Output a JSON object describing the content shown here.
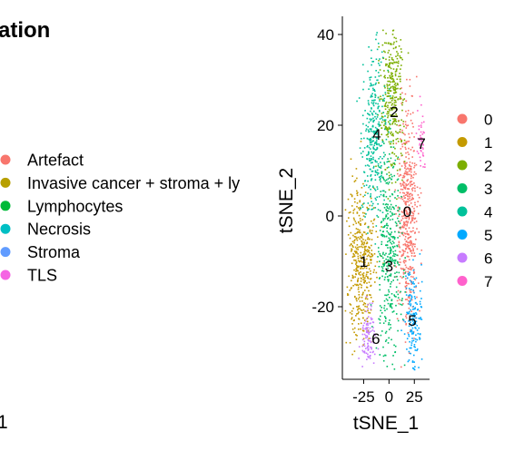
{
  "left_panel": {
    "title_fragment": "ation",
    "axis_fragment": "1",
    "legend_items": [
      {
        "label": "Artefact",
        "color": "#F8766D"
      },
      {
        "label": "Invasive cancer + stroma + ly",
        "color": "#B79F00"
      },
      {
        "label": "Lymphocytes",
        "color": "#00BA38"
      },
      {
        "label": "Necrosis",
        "color": "#00BFC4"
      },
      {
        "label": "Stroma",
        "color": "#619CFF"
      },
      {
        "label": "TLS",
        "color": "#F564E3"
      }
    ]
  },
  "chart_data": {
    "type": "scatter",
    "title": "",
    "xlabel": "tSNE_1",
    "ylabel": "tSNE_2",
    "xlim": [
      -46,
      40
    ],
    "ylim": [
      -36,
      44
    ],
    "x_ticks": [
      -25,
      0,
      25
    ],
    "x_tick_labels": [
      "-25",
      "0",
      "25"
    ],
    "y_ticks": [
      -20,
      0,
      20,
      40
    ],
    "y_tick_labels": [
      "-20",
      "0",
      "20",
      "40"
    ],
    "grid": false,
    "legend_placement": "right",
    "clusters": [
      {
        "name": "0",
        "color": "#F8766D",
        "center": [
          18,
          0
        ],
        "label_at": [
          18,
          1
        ]
      },
      {
        "name": "1",
        "color": "#C49A00",
        "center": [
          -28,
          -10
        ],
        "label_at": [
          -25,
          -10
        ]
      },
      {
        "name": "2",
        "color": "#7CAE00",
        "center": [
          3,
          27
        ],
        "label_at": [
          5,
          23
        ]
      },
      {
        "name": "3",
        "color": "#00BE67",
        "center": [
          0,
          -8
        ],
        "label_at": [
          0,
          -11
        ]
      },
      {
        "name": "4",
        "color": "#00C19A",
        "center": [
          -15,
          17
        ],
        "label_at": [
          -12,
          18
        ]
      },
      {
        "name": "5",
        "color": "#00A9FF",
        "center": [
          24,
          -23
        ],
        "label_at": [
          23,
          -23
        ]
      },
      {
        "name": "6",
        "color": "#C77CFF",
        "center": [
          -20,
          -27
        ],
        "label_at": [
          -13,
          -27
        ]
      },
      {
        "name": "7",
        "color": "#FF61CC",
        "center": [
          32,
          17
        ],
        "label_at": [
          32,
          16
        ]
      }
    ]
  }
}
